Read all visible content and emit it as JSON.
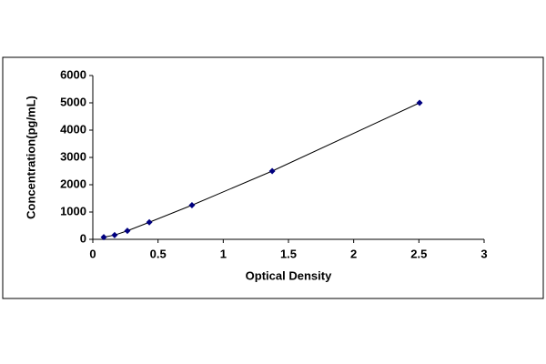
{
  "chart_data": {
    "type": "scatter",
    "line": true,
    "x_label": "Optical Density",
    "y_label": "Concentration(pg/mL)",
    "x": [
      0.084,
      0.167,
      0.265,
      0.433,
      0.76,
      1.375,
      2.505
    ],
    "values": [
      78,
      156,
      312,
      625,
      1250,
      2500,
      5000
    ],
    "color": "#000080",
    "line_color": "#000000",
    "xlim": [
      0,
      3
    ],
    "xticks": [
      0,
      0.5,
      1,
      1.5,
      2,
      2.5,
      3
    ],
    "ylim": [
      0,
      6000
    ],
    "yticks": [
      0,
      1000,
      2000,
      3000,
      4000,
      5000,
      6000
    ],
    "grid": false
  }
}
